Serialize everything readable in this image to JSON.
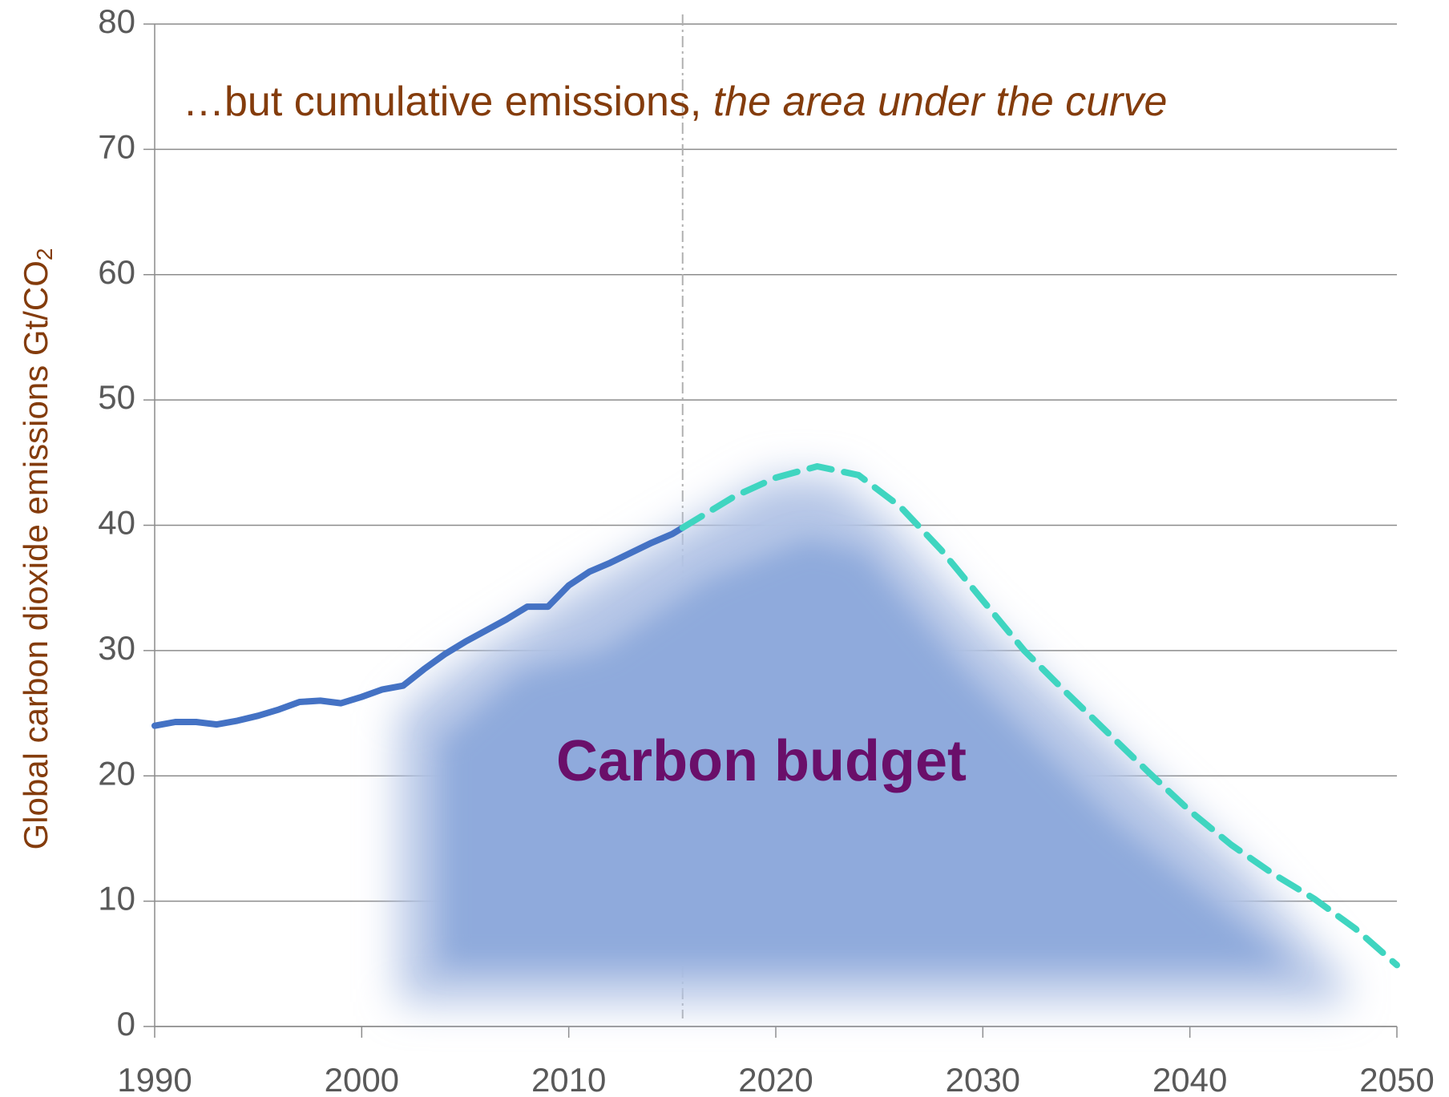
{
  "chart_data": {
    "type": "line",
    "annotation": "…but cumulative emissions, ",
    "annotation_italic": "the area under the curve",
    "area_label": "Carbon budget",
    "y_label": "Global carbon dioxide emissions Gt/CO",
    "y_label_subscript": "2",
    "xlim": [
      1990,
      2050
    ],
    "xticks": [
      1990,
      2000,
      2010,
      2020,
      2030,
      2040,
      2050
    ],
    "ylim": [
      0,
      80
    ],
    "yticks": [
      0,
      10,
      20,
      30,
      40,
      50,
      60,
      70,
      80
    ],
    "grid": true,
    "divider_x": 2015.5,
    "series": [
      {
        "color": "#4472c4",
        "dashed": false,
        "x": [
          1990,
          1991,
          1992,
          1993,
          1994,
          1995,
          1996,
          1997,
          1998,
          1999,
          2000,
          2001,
          2002,
          2003,
          2004,
          2005,
          2006,
          2007,
          2008,
          2009,
          2010,
          2011,
          2012,
          2013,
          2014,
          2015,
          2015.5
        ],
        "values": [
          24,
          24.3,
          24.3,
          24.1,
          24.4,
          24.8,
          25.3,
          25.9,
          26,
          25.8,
          26.3,
          26.9,
          27.2,
          28.5,
          29.7,
          30.7,
          31.6,
          32.5,
          33.5,
          33.5,
          35.2,
          36.3,
          37,
          37.8,
          38.6,
          39.3,
          39.8
        ]
      },
      {
        "color": "#3fd5c0",
        "dashed": true,
        "x": [
          2015.5,
          2018,
          2020,
          2022,
          2024,
          2026,
          2028,
          2030,
          2032,
          2034,
          2036,
          2038,
          2040,
          2042,
          2044,
          2046,
          2048,
          2050
        ],
        "values": [
          39.8,
          42.3,
          43.8,
          44.7,
          44.0,
          41.5,
          38,
          34,
          30,
          26.7,
          23.5,
          20.3,
          17.2,
          14.5,
          12.2,
          10.2,
          7.8,
          4.9
        ]
      }
    ]
  }
}
